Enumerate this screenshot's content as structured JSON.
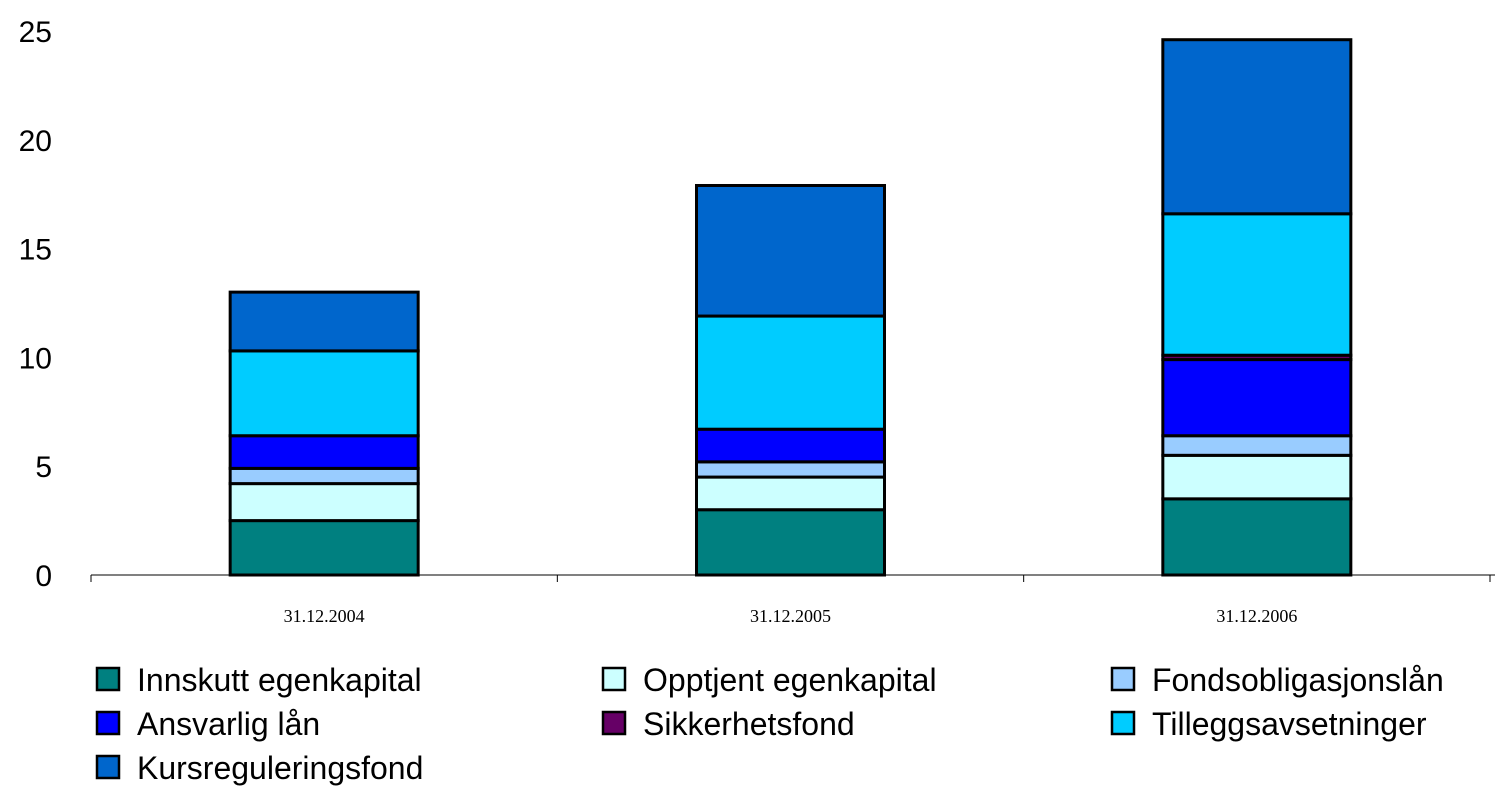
{
  "chart_data": {
    "type": "bar",
    "stacked": true,
    "categories": [
      "31.12.2004",
      "31.12.2005",
      "31.12.2006"
    ],
    "series": [
      {
        "name": "Innskutt egenkapital",
        "color": "#008080",
        "values": [
          2.5,
          3.0,
          3.5
        ]
      },
      {
        "name": "Opptjent egenkapital",
        "color": "#CCFFFF",
        "values": [
          1.7,
          1.5,
          2.0
        ]
      },
      {
        "name": "Fondsobligasjonslån",
        "color": "#99CCFF",
        "values": [
          0.7,
          0.7,
          0.9
        ]
      },
      {
        "name": "Ansvarlig lån",
        "color": "#0000FF",
        "values": [
          1.5,
          1.5,
          3.5
        ]
      },
      {
        "name": "Sikkerhetsfond",
        "color": "#660066",
        "values": [
          0.0,
          0.0,
          0.2
        ]
      },
      {
        "name": "Tilleggsavsetninger",
        "color": "#00CCFF",
        "values": [
          3.9,
          5.2,
          6.5
        ]
      },
      {
        "name": "Kursreguleringsfond",
        "color": "#0066CC",
        "values": [
          2.7,
          6.0,
          8.0
        ]
      }
    ],
    "yticks": [
      "0",
      "5",
      "10",
      "15",
      "20",
      "25"
    ],
    "ylim": [
      0,
      25
    ],
    "legend_position": "bottom",
    "grid": false
  }
}
